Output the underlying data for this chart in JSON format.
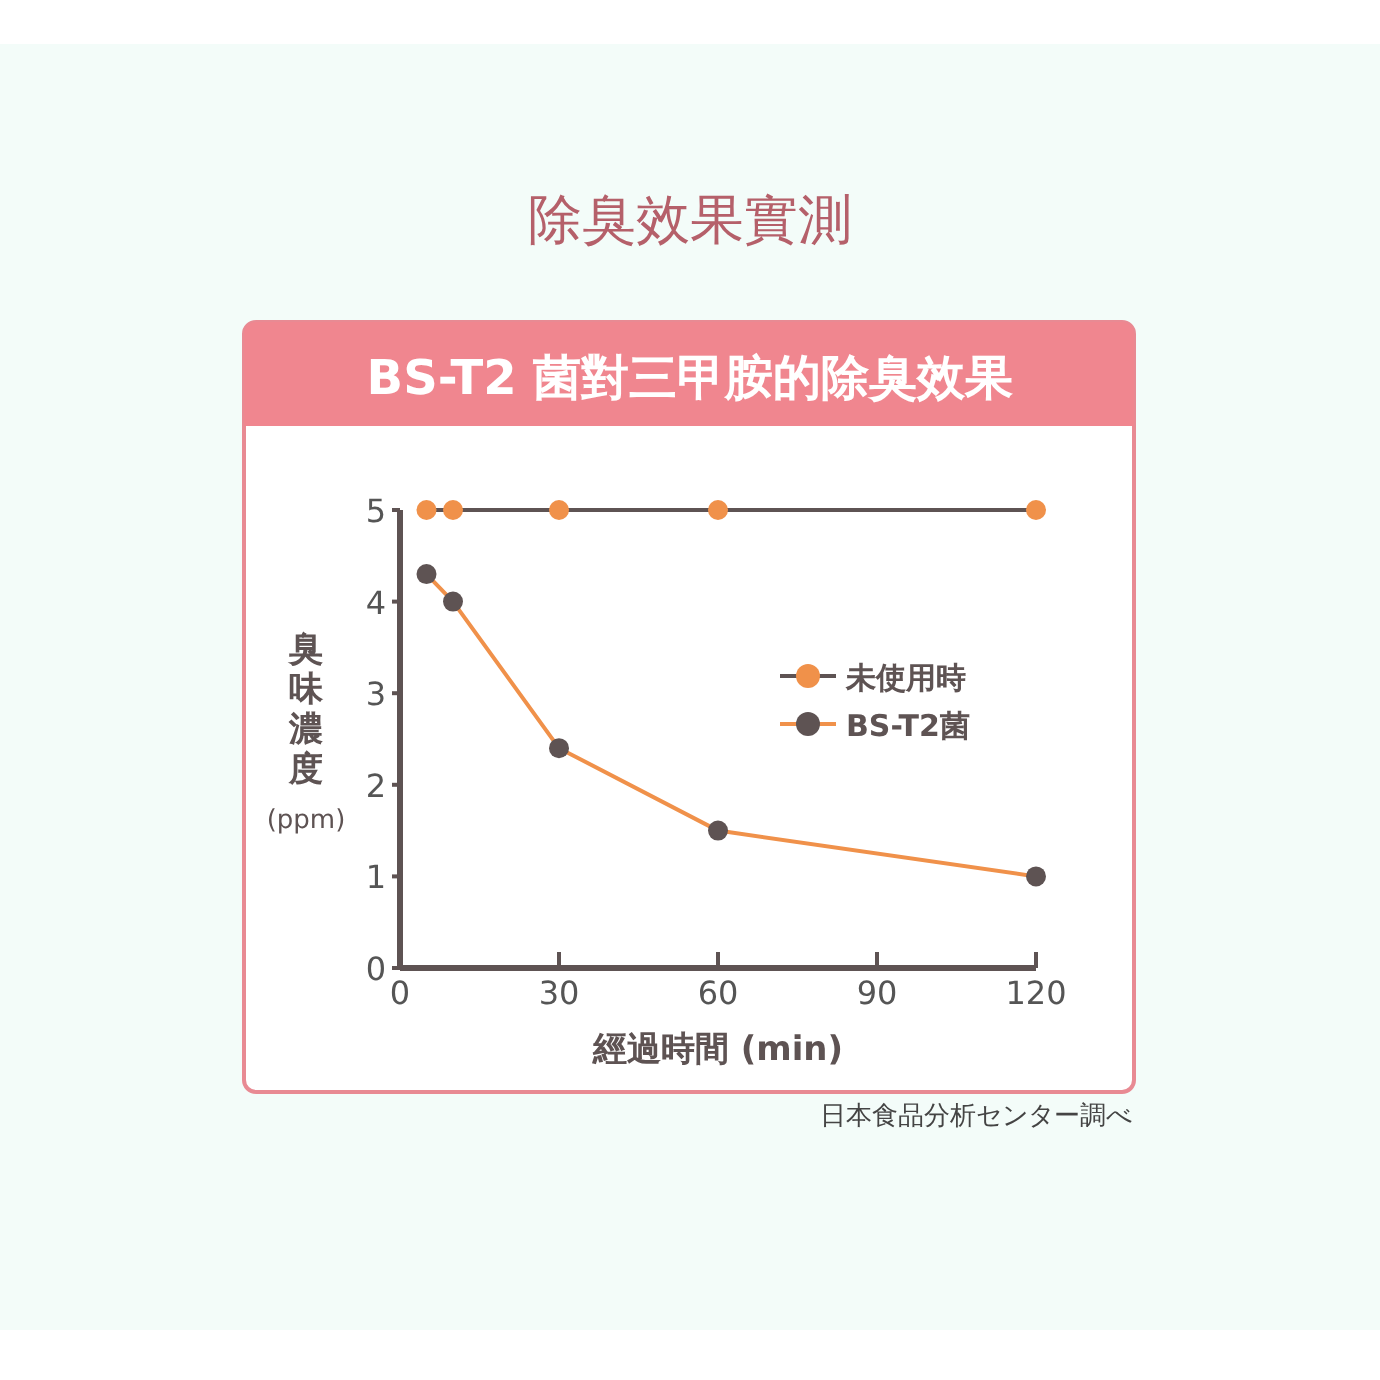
{
  "chart_data": {
    "type": "line",
    "title": "除臭效果實測",
    "subtitle": "BS-T2 菌對三甲胺的除臭效果",
    "xlabel": "經過時間 (min)",
    "ylabel": "臭味濃度 (ppm)",
    "x": [
      5,
      10,
      30,
      60,
      120
    ],
    "series": [
      {
        "name": "未使用時",
        "color": "#f0914a",
        "values": [
          5,
          5,
          5,
          5,
          5
        ]
      },
      {
        "name": "BS-T2菌",
        "color": "#5e5353",
        "values": [
          4.3,
          4,
          2.4,
          1.5,
          1
        ]
      }
    ],
    "xlim": [
      0,
      120
    ],
    "xticks": [
      0,
      30,
      60,
      90,
      120
    ],
    "ylim": [
      0,
      5
    ],
    "yticks": [
      0,
      1,
      2,
      3,
      4,
      5
    ],
    "marker": "circle",
    "line_style": "solid",
    "grid": false,
    "legend": "right",
    "annotations": [
      "日本食品分析センター調べ"
    ]
  }
}
